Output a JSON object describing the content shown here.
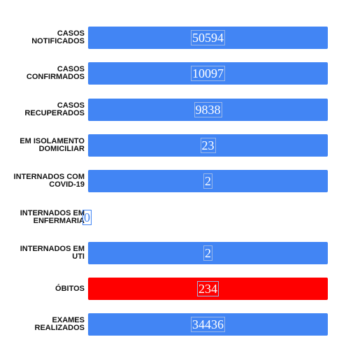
{
  "rows": [
    {
      "label": "CASOS NOTIFICADOS",
      "value": 50594,
      "color": "#4285f4"
    },
    {
      "label": "CASOS CONFIRMADOS",
      "value": 10097,
      "color": "#4285f4"
    },
    {
      "label": "CASOS RECUPERADOS",
      "value": 9838,
      "color": "#4285f4"
    },
    {
      "label": "EM ISOLAMENTO DOMICILIAR",
      "value": 23,
      "color": "#4285f4"
    },
    {
      "label": "INTERNADOS COM COVID-19",
      "value": 2,
      "color": "#4285f4"
    },
    {
      "label": "INTERNADOS EM ENFERMARIA",
      "value": 0
    },
    {
      "label": "INTERNADOS EM UTI",
      "value": 2,
      "color": "#4285f4"
    },
    {
      "label": "ÓBITOS",
      "value": 234,
      "color": "#ff0000"
    },
    {
      "label": "EXAMES REALIZADOS",
      "value": 34436,
      "color": "#4285f4"
    }
  ]
}
